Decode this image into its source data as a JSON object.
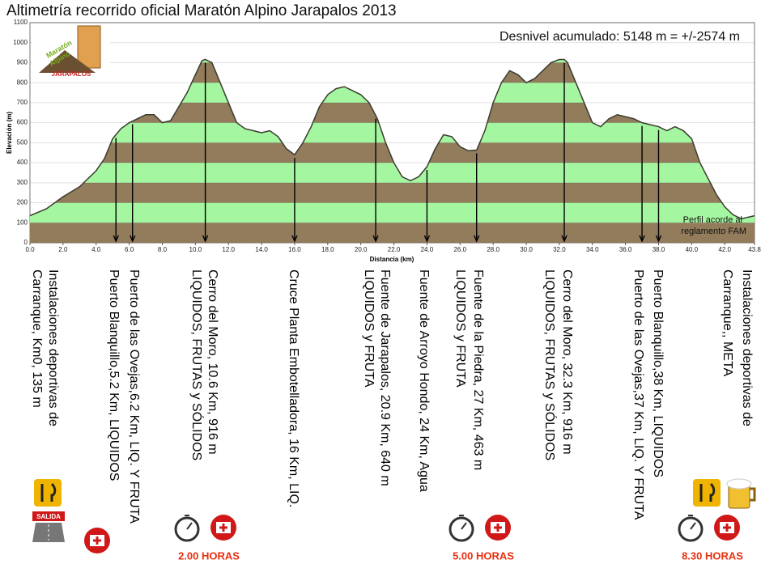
{
  "chart_data": {
    "type": "area",
    "title": "Altimetría recorrido oficial Maratón Alpino Jarapalos 2013",
    "annotation": "Desnivel acumulado: 5148 m = +/-2574 m",
    "note_lines": [
      "Perfil acorde al",
      "reglamento FAM"
    ],
    "logo_lines": [
      "Maratón",
      "Alpino",
      "JARAPALOS"
    ],
    "xlabel": "Distancia (km)",
    "ylabel": "Elevación (m)",
    "x": [
      0,
      1,
      2,
      3,
      4,
      4.5,
      5,
      5.5,
      6,
      6.5,
      7,
      7.5,
      8,
      8.5,
      9,
      9.5,
      10,
      10.4,
      10.6,
      11,
      11.5,
      12,
      12.5,
      13,
      13.5,
      14,
      14.5,
      15,
      15.5,
      16,
      16.5,
      17,
      17.5,
      18,
      18.5,
      19,
      19.5,
      20,
      20.5,
      21,
      21.5,
      22,
      22.5,
      23,
      23.5,
      24,
      24.5,
      25,
      25.5,
      26,
      26.5,
      27,
      27.5,
      28,
      28.5,
      29,
      29.5,
      30,
      30.5,
      31,
      31.5,
      32,
      32.3,
      32.5,
      33,
      33.5,
      34,
      34.5,
      35,
      35.5,
      36,
      36.5,
      37,
      37.5,
      38,
      38.5,
      39,
      39.5,
      40,
      40.5,
      41,
      41.5,
      42,
      42.5,
      43,
      43.8
    ],
    "values": [
      135,
      170,
      230,
      280,
      360,
      420,
      520,
      570,
      600,
      620,
      640,
      640,
      600,
      610,
      680,
      750,
      840,
      910,
      916,
      900,
      800,
      700,
      600,
      570,
      560,
      550,
      560,
      530,
      470,
      440,
      500,
      580,
      680,
      740,
      770,
      780,
      760,
      740,
      700,
      620,
      500,
      400,
      330,
      310,
      330,
      380,
      470,
      540,
      530,
      480,
      460,
      463,
      560,
      700,
      800,
      860,
      840,
      800,
      820,
      860,
      900,
      916,
      916,
      900,
      800,
      700,
      600,
      580,
      620,
      640,
      630,
      620,
      600,
      590,
      580,
      560,
      580,
      560,
      520,
      400,
      320,
      240,
      180,
      140,
      120,
      135
    ],
    "colors": [
      "#927c5c",
      "#a4f7a0"
    ],
    "band_step": 100,
    "line_color": "#3b3b2e",
    "xlim": [
      0,
      43.8
    ],
    "ylim": [
      0,
      1100
    ],
    "xticks": [
      {
        "value": 0,
        "label": "0.0"
      },
      {
        "value": 2,
        "label": "2.0"
      },
      {
        "value": 4,
        "label": "4.0"
      },
      {
        "value": 6,
        "label": "6.0"
      },
      {
        "value": 8,
        "label": "8.0"
      },
      {
        "value": 10,
        "label": "10.0"
      },
      {
        "value": 12,
        "label": "12.0"
      },
      {
        "value": 14,
        "label": "14.0"
      },
      {
        "value": 16,
        "label": "16.0"
      },
      {
        "value": 18,
        "label": "18.0"
      },
      {
        "value": 20,
        "label": "20.0"
      },
      {
        "value": 22,
        "label": "22.0"
      },
      {
        "value": 24,
        "label": "24.0"
      },
      {
        "value": 26,
        "label": "26.0"
      },
      {
        "value": 28,
        "label": "28.0"
      },
      {
        "value": 30,
        "label": "30.0"
      },
      {
        "value": 32,
        "label": "32.0"
      },
      {
        "value": 34,
        "label": "34.0"
      },
      {
        "value": 36,
        "label": "36.0"
      },
      {
        "value": 38,
        "label": "38.0"
      },
      {
        "value": 40,
        "label": "40.0"
      },
      {
        "value": 42,
        "label": "42.0"
      },
      43.8
    ],
    "yticks": [
      0,
      100,
      200,
      300,
      400,
      500,
      600,
      700,
      800,
      900,
      1000,
      1100
    ],
    "grid": true,
    "markers": [
      5.2,
      6.2,
      10.6,
      16,
      20.9,
      24,
      27,
      32.3,
      37,
      38
    ],
    "stations": [
      {
        "lines": [
          "Instalaciones deportivas de",
          "Carranque, Km0, 135 m"
        ]
      },
      {
        "lines": [
          "Puerto de las Ovejas,6.2 Km, LIQ. Y FRUTA",
          "Puerto Blanquillo,5.2 Km, LIQUIDOS"
        ]
      },
      {
        "lines": [
          "Cerro del Moro, 10.6 Km, 916 m",
          "LIQUIDOS, FRUTAS y SÓLIDOS"
        ]
      },
      {
        "lines": [
          "Cruce Planta Embotelladora, 16 Km, LIQ."
        ]
      },
      {
        "lines": [
          "Fuente de Jarapalos, 20.9 Km, 640 m",
          "LIQUIDOS y FRUTA"
        ]
      },
      {
        "lines": [
          "Fuente de Arroyo Hondo, 24 Km, Agua"
        ]
      },
      {
        "lines": [
          "Fuente de la Piedra, 27 Km, 463 m",
          "LIQUIDOS y FRUTA"
        ]
      },
      {
        "lines": [
          "Cerro del Moro, 32.3 Km, 916 m",
          "LIQUIDOS, FRUTAS y SÓLIDOS"
        ]
      },
      {
        "lines": [
          "Puerto Blanquillo,38 Km, LIQUIDOS",
          "Puerto de las Ovejas,37 Km, LIQ. Y FRUTA"
        ]
      },
      {
        "lines": [
          "Instalaciones deportivas de",
          "Carranque,, META"
        ]
      }
    ],
    "start_sign": "SALIDA",
    "times": [
      "2.00 HORAS",
      "5.00 HORAS",
      "8.30 HORAS"
    ]
  }
}
